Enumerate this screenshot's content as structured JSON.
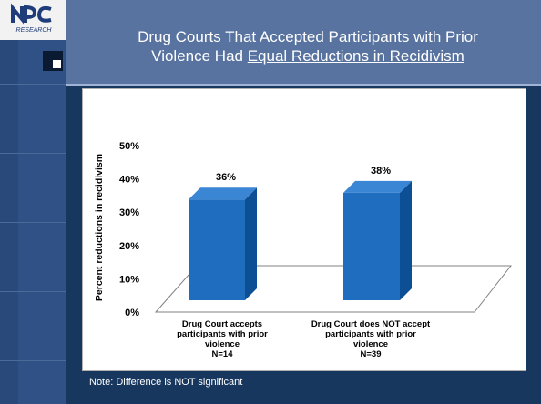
{
  "slide": {
    "title_line1": "Drug Courts That Accepted Participants with Prior",
    "title_line2_prefix": "Violence Had ",
    "title_line2_underlined": "Equal Reductions in Recidivism",
    "note": "Note: Difference is NOT significant",
    "logo_text": "NPC RESEARCH"
  },
  "colors": {
    "background": "#17375e",
    "header": "#5873a0",
    "bar_front": "#1e6dbf",
    "bar_side": "#0d4f94",
    "bar_top": "#3a86d4"
  },
  "chart_data": {
    "type": "bar",
    "title": "",
    "ylabel": "Percent reductions in recidivism",
    "ylim": [
      0,
      50
    ],
    "yticks": [
      "0%",
      "10%",
      "20%",
      "30%",
      "40%",
      "50%"
    ],
    "categories": [
      [
        "Drug Court accepts",
        "participants with prior",
        "violence",
        "N=14"
      ],
      [
        "Drug Court does NOT accept",
        "participants with prior",
        "violence",
        "N=39"
      ]
    ],
    "values": [
      36,
      38
    ],
    "value_labels": [
      "36%",
      "38%"
    ],
    "grid": false,
    "three_d": true
  }
}
